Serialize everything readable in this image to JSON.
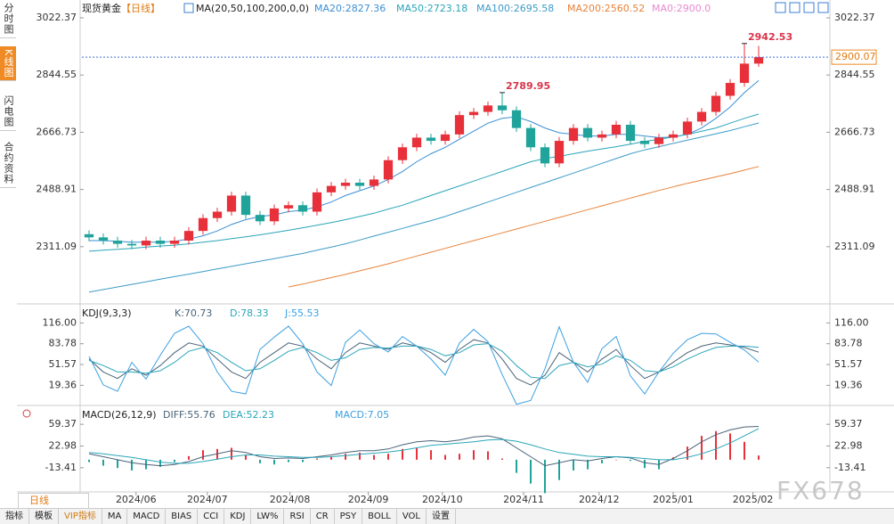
{
  "chart_data": [
    {
      "type": "candlestick",
      "title": "现货黄金",
      "subtitle": "【日线】",
      "indicator_label": "MA(20,50,100,200,0,0)",
      "extra_legend": "MA0:2900.0",
      "up_color": "#e8303a",
      "down_color": "#1fa39a",
      "open": [
        2350,
        2340,
        2330,
        2320,
        2315,
        2330,
        2320,
        2330,
        2360,
        2400,
        2420,
        2470,
        2410,
        2390,
        2430,
        2440,
        2420,
        2480,
        2500,
        2510,
        2500,
        2520,
        2580,
        2620,
        2650,
        2640,
        2660,
        2720,
        2730,
        2750,
        2735,
        2680,
        2620,
        2570,
        2640,
        2680,
        2650,
        2660,
        2690,
        2640,
        2630,
        2650,
        2660,
        2700,
        2730,
        2780,
        2820,
        2880
      ],
      "high": [
        2362,
        2352,
        2342,
        2332,
        2342,
        2342,
        2342,
        2372,
        2412,
        2432,
        2482,
        2482,
        2422,
        2442,
        2452,
        2452,
        2492,
        2512,
        2522,
        2522,
        2532,
        2592,
        2632,
        2662,
        2662,
        2672,
        2732,
        2742,
        2762,
        2789.95,
        2747,
        2692,
        2632,
        2652,
        2692,
        2692,
        2672,
        2702,
        2702,
        2652,
        2662,
        2672,
        2712,
        2742,
        2792,
        2832,
        2942.53,
        2935
      ],
      "low": [
        2328,
        2318,
        2308,
        2303,
        2303,
        2308,
        2308,
        2318,
        2348,
        2388,
        2408,
        2398,
        2378,
        2378,
        2418,
        2408,
        2408,
        2468,
        2488,
        2488,
        2488,
        2508,
        2568,
        2608,
        2628,
        2628,
        2648,
        2708,
        2718,
        2723,
        2668,
        2608,
        2558,
        2558,
        2628,
        2638,
        2638,
        2648,
        2628,
        2618,
        2618,
        2638,
        2648,
        2688,
        2718,
        2768,
        2808,
        2870
      ],
      "close": [
        2340,
        2330,
        2320,
        2315,
        2330,
        2320,
        2330,
        2360,
        2400,
        2420,
        2470,
        2410,
        2390,
        2430,
        2440,
        2420,
        2480,
        2500,
        2510,
        2500,
        2520,
        2580,
        2620,
        2650,
        2640,
        2660,
        2720,
        2730,
        2750,
        2735,
        2680,
        2620,
        2570,
        2640,
        2680,
        2650,
        2660,
        2690,
        2640,
        2630,
        2650,
        2660,
        2700,
        2730,
        2780,
        2820,
        2880,
        2900.07
      ],
      "last": 2900.07,
      "series": [
        {
          "name": "MA20:2827.36",
          "color": "#3b8fd4",
          "values": [
            2330,
            2330,
            2328,
            2325,
            2325,
            2325,
            2328,
            2335,
            2345,
            2360,
            2380,
            2395,
            2405,
            2410,
            2420,
            2425,
            2435,
            2450,
            2470,
            2485,
            2500,
            2520,
            2545,
            2575,
            2600,
            2620,
            2645,
            2670,
            2695,
            2710,
            2715,
            2700,
            2680,
            2665,
            2660,
            2655,
            2655,
            2660,
            2660,
            2655,
            2650,
            2652,
            2660,
            2680,
            2710,
            2745,
            2790,
            2827.36
          ]
        },
        {
          "name": "MA50:2723.18",
          "color": "#2aa5b8",
          "values": [
            2297,
            2300,
            2303,
            2306,
            2310,
            2313,
            2316,
            2320,
            2325,
            2330,
            2336,
            2342,
            2348,
            2355,
            2362,
            2370,
            2378,
            2386,
            2395,
            2405,
            2415,
            2428,
            2440,
            2455,
            2470,
            2485,
            2500,
            2515,
            2530,
            2545,
            2560,
            2575,
            2585,
            2592,
            2600,
            2608,
            2615,
            2622,
            2630,
            2638,
            2645,
            2652,
            2660,
            2670,
            2680,
            2695,
            2710,
            2723.18
          ]
        },
        {
          "name": "MA100:2695.58",
          "color": "#3d9bc8",
          "values": [
            2170,
            2178,
            2186,
            2194,
            2202,
            2210,
            2218,
            2226,
            2234,
            2242,
            2250,
            2258,
            2266,
            2274,
            2282,
            2290,
            2300,
            2310,
            2320,
            2332,
            2344,
            2356,
            2368,
            2380,
            2392,
            2405,
            2420,
            2435,
            2450,
            2465,
            2480,
            2495,
            2510,
            2525,
            2540,
            2555,
            2570,
            2585,
            2600,
            2612,
            2622,
            2632,
            2642,
            2652,
            2662,
            2672,
            2684,
            2695.58
          ]
        },
        {
          "name": "MA200:2560.52",
          "color": "#e8823a",
          "values": [
            null,
            null,
            null,
            null,
            null,
            null,
            null,
            null,
            null,
            null,
            null,
            null,
            null,
            null,
            2186,
            2195,
            2205,
            2215,
            2225,
            2236,
            2247,
            2258,
            2270,
            2282,
            2294,
            2306,
            2318,
            2330,
            2342,
            2354,
            2366,
            2378,
            2390,
            2402,
            2414,
            2426,
            2438,
            2450,
            2462,
            2474,
            2486,
            2497,
            2508,
            2518,
            2528,
            2538,
            2549,
            2560.52
          ]
        }
      ],
      "extra_legend_color": "#e88ad0",
      "last_color": "#3b6fd4",
      "ylim": [
        2150,
        3050
      ],
      "yticks": [
        3022.37,
        2844.55,
        2666.73,
        2488.91,
        2311.09
      ],
      "xlim": [
        -0.5,
        47.5
      ],
      "xticks": [
        {
          "value": 3.3,
          "label": "2024/06"
        },
        {
          "value": 8.3,
          "label": "2024/07"
        },
        {
          "value": 14.1,
          "label": "2024/08"
        },
        {
          "value": 19.6,
          "label": "2024/09"
        },
        {
          "value": 24.8,
          "label": "2024/10"
        },
        {
          "value": 30.5,
          "label": "2024/11"
        },
        {
          "value": 35.8,
          "label": "2024/12"
        },
        {
          "value": 41,
          "label": "2025/01"
        },
        {
          "value": 46.6,
          "label": "2025/02"
        }
      ]
    },
    {
      "type": "line",
      "title": "KDJ(9,3,3)",
      "series": [
        {
          "name": "K:70.73",
          "color": "#4a6378",
          "values": [
            60,
            40,
            30,
            45,
            35,
            50,
            70,
            85,
            80,
            60,
            40,
            30,
            55,
            70,
            85,
            80,
            60,
            45,
            70,
            85,
            80,
            75,
            85,
            80,
            70,
            55,
            75,
            90,
            85,
            60,
            30,
            20,
            35,
            70,
            55,
            40,
            60,
            75,
            50,
            30,
            40,
            55,
            70,
            80,
            85,
            82,
            78,
            70.73
          ]
        },
        {
          "name": "D:78.33",
          "color": "#2aa5b8",
          "values": [
            58,
            50,
            40,
            40,
            38,
            42,
            55,
            72,
            78,
            70,
            55,
            42,
            45,
            58,
            72,
            78,
            70,
            58,
            62,
            75,
            78,
            77,
            80,
            80,
            75,
            65,
            70,
            82,
            84,
            72,
            50,
            32,
            30,
            50,
            55,
            48,
            52,
            65,
            58,
            42,
            40,
            48,
            60,
            70,
            78,
            80,
            80,
            78.33
          ]
        },
        {
          "name": "J:55.53",
          "color": "#3ca0e0",
          "values": [
            64,
            20,
            10,
            55,
            29,
            66,
            100,
            111,
            84,
            40,
            10,
            6,
            75,
            94,
            111,
            84,
            40,
            19,
            86,
            105,
            84,
            71,
            95,
            80,
            60,
            35,
            85,
            106,
            87,
            36,
            -10,
            -4,
            45,
            110,
            55,
            24,
            76,
            95,
            34,
            6,
            40,
            69,
            90,
            100,
            99,
            86,
            74,
            55.53
          ]
        }
      ],
      "ylim": [
        -5,
        140
      ],
      "yticks": [
        {
          "value": 116,
          "label": "116.00"
        },
        83.78,
        51.57,
        19.36
      ]
    },
    {
      "type": "macd",
      "title": "MACD(26,12,9)",
      "series": [
        {
          "name": "DIFF:55.76",
          "color": "#4a6378",
          "values": [
            10,
            5,
            0,
            -5,
            -8,
            -10,
            -8,
            -3,
            5,
            10,
            15,
            12,
            5,
            2,
            3,
            2,
            5,
            8,
            12,
            15,
            15,
            18,
            25,
            30,
            32,
            30,
            33,
            38,
            40,
            35,
            20,
            5,
            -10,
            -5,
            0,
            -2,
            2,
            5,
            3,
            -5,
            -8,
            2,
            15,
            30,
            42,
            50,
            55,
            55.76
          ]
        },
        {
          "name": "DEA:52.23",
          "color": "#2aa5b8",
          "values": [
            12,
            10,
            7,
            4,
            0,
            -4,
            -6,
            -6,
            -3,
            1,
            5,
            8,
            8,
            6,
            5,
            4,
            4,
            5,
            7,
            9,
            11,
            13,
            16,
            20,
            24,
            26,
            28,
            30,
            33,
            34,
            31,
            25,
            18,
            12,
            9,
            6,
            5,
            5,
            4,
            2,
            0,
            0,
            4,
            10,
            18,
            28,
            40,
            52.23
          ]
        }
      ],
      "histogram": {
        "name": "MACD:7.05",
        "color": "#3ca0e0",
        "up_color": "#e8303a",
        "down_color": "#1fa39a",
        "values": [
          -4,
          -10,
          -14,
          -18,
          -16,
          -12,
          -4,
          6,
          16,
          18,
          20,
          8,
          -6,
          -8,
          -4,
          -4,
          2,
          6,
          10,
          12,
          8,
          10,
          18,
          20,
          16,
          8,
          10,
          16,
          14,
          2,
          -22,
          -40,
          -56,
          -34,
          -18,
          -16,
          -6,
          0,
          -2,
          -14,
          -16,
          4,
          22,
          40,
          48,
          44,
          30,
          7.05
        ]
      },
      "ylim": [
        -48,
        76
      ],
      "yticks": [
        59.37,
        22.98,
        -13.41
      ]
    }
  ],
  "ui": {
    "tabs": [
      "分时图",
      "K线图",
      "闪电图",
      "合约资料"
    ],
    "period_tab": "日线",
    "toolbar": [
      "指标",
      "模板",
      "VIP指标",
      "MA",
      "MACD",
      "BIAS",
      "CCI",
      "KDJ",
      "LW%",
      "RSI",
      "CR",
      "PSY",
      "BOLL",
      "VOL",
      "设置"
    ],
    "watermark": "FX678"
  }
}
